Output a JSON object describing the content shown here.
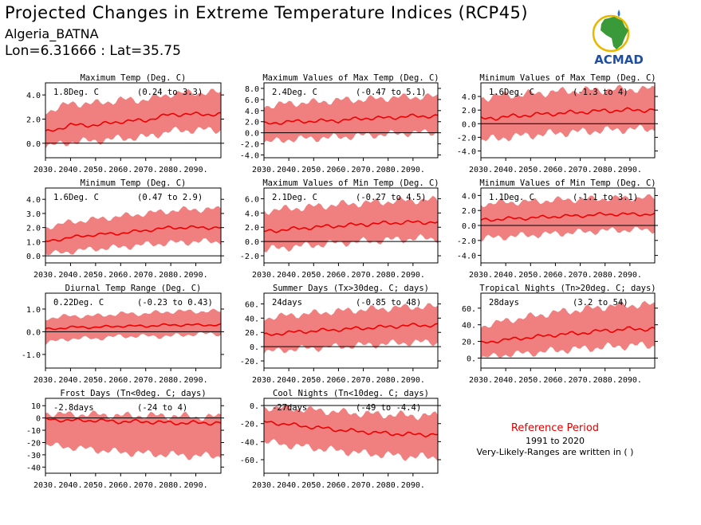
{
  "header": {
    "title": "Projected Changes in Extreme Temperature Indices (RCP45)",
    "region": "Algeria_BATNA",
    "coords": "Lon=6.31666 : Lat=35.75"
  },
  "logo": {
    "text": "ACMAD",
    "icon": "africa-map-logo-icon"
  },
  "reference": {
    "title": "Reference Period",
    "years": "1991 to 2020",
    "note": "Very-Likely-Ranges are written in ( )"
  },
  "colors": {
    "band": "#f08080",
    "line": "#ee0000",
    "reference": "#e00000",
    "logo_text": "#1f4fa0",
    "logo_map": "#3a9a3a"
  },
  "chart_data": [
    {
      "type": "area",
      "title": "Maximum Temp (Deg. C)",
      "mean_label": "1.8Deg. C",
      "range_label": "(0.24 to 3.3)",
      "x": [
        2030,
        2040,
        2050,
        2060,
        2070,
        2080,
        2090
      ],
      "xticklabels": [
        "2030.",
        "2040.",
        "2050.",
        "2060.",
        "2070.",
        "2080.",
        "2090."
      ],
      "xlim": [
        2030,
        2100
      ],
      "ylim": [
        -1.2,
        5.0
      ],
      "yticks": [
        0.0,
        2.0,
        4.0
      ],
      "yticklabels": [
        "0.0",
        "2.0",
        "4.0"
      ],
      "series": [
        {
          "mean": [
            0.9,
            1.5,
            1.5,
            1.8,
            1.9,
            2.4,
            2.4
          ],
          "low": [
            -0.3,
            0.1,
            0.2,
            0.4,
            0.5,
            1.0,
            1.1
          ],
          "high": [
            2.6,
            3.3,
            3.3,
            3.6,
            3.6,
            4.1,
            4.2
          ]
        }
      ]
    },
    {
      "type": "area",
      "title": "Maximum Values of Max Temp (Deg. C)",
      "mean_label": "2.4Deg. C",
      "range_label": "(-0.47 to 5.1)",
      "x": [
        2030,
        2040,
        2050,
        2060,
        2070,
        2080,
        2090
      ],
      "xticklabels": [
        "2030.",
        "2040.",
        "2050.",
        "2060.",
        "2070.",
        "2080.",
        "2090."
      ],
      "xlim": [
        2030,
        2100
      ],
      "ylim": [
        -4.5,
        9.0
      ],
      "yticks": [
        -4.0,
        -2.0,
        0.0,
        2.0,
        4.0,
        6.0,
        8.0
      ],
      "yticklabels": [
        "-4.0",
        "-2.0",
        "0.0",
        "2.0",
        "4.0",
        "6.0",
        "8.0"
      ],
      "series": [
        {
          "mean": [
            1.6,
            2.0,
            2.1,
            2.2,
            2.6,
            2.7,
            3.0
          ],
          "low": [
            -1.8,
            -1.2,
            -1.0,
            -0.8,
            -0.5,
            -0.3,
            0.0
          ],
          "high": [
            4.8,
            5.3,
            5.5,
            5.9,
            6.0,
            6.3,
            6.5
          ]
        }
      ]
    },
    {
      "type": "area",
      "title": "Minimum Values of Max Temp (Deg. C)",
      "mean_label": "1.6Deg. C",
      "range_label": "(-1.3 to 4)",
      "x": [
        2030,
        2040,
        2050,
        2060,
        2070,
        2080,
        2090
      ],
      "xticklabels": [
        "2030.",
        "2040.",
        "2050.",
        "2060.",
        "2070.",
        "2080.",
        "2090."
      ],
      "xlim": [
        2030,
        2100
      ],
      "ylim": [
        -5.0,
        6.0
      ],
      "yticks": [
        -4.0,
        -2.0,
        0.0,
        2.0,
        4.0
      ],
      "yticklabels": [
        "-4.0",
        "-2.0",
        "0.0",
        "2.0",
        "4.0"
      ],
      "series": [
        {
          "mean": [
            0.7,
            1.0,
            1.3,
            1.5,
            1.7,
            1.9,
            2.0
          ],
          "low": [
            -2.5,
            -2.0,
            -1.7,
            -1.4,
            -1.2,
            -1.0,
            -0.8
          ],
          "high": [
            3.8,
            4.2,
            4.4,
            4.7,
            4.9,
            5.0,
            5.1
          ]
        }
      ]
    },
    {
      "type": "area",
      "title": "Minimum Temp (Deg. C)",
      "mean_label": "1.6Deg. C",
      "range_label": "(0.47 to 2.9)",
      "x": [
        2030,
        2040,
        2050,
        2060,
        2070,
        2080,
        2090
      ],
      "xticklabels": [
        "2030.",
        "2040.",
        "2050.",
        "2060.",
        "2070.",
        "2080.",
        "2090."
      ],
      "xlim": [
        2030,
        2100
      ],
      "ylim": [
        -0.5,
        4.8
      ],
      "yticks": [
        0.0,
        1.0,
        2.0,
        3.0,
        4.0
      ],
      "yticklabels": [
        "0.0",
        "1.0",
        "2.0",
        "3.0",
        "4.0"
      ],
      "series": [
        {
          "mean": [
            1.0,
            1.3,
            1.5,
            1.6,
            1.8,
            2.0,
            2.0
          ],
          "low": [
            0.1,
            0.3,
            0.5,
            0.6,
            0.8,
            0.9,
            1.0
          ],
          "high": [
            2.0,
            2.4,
            2.6,
            2.8,
            3.0,
            3.2,
            3.3
          ]
        }
      ]
    },
    {
      "type": "area",
      "title": "Maximum Values of Min Temp (Deg. C)",
      "mean_label": "2.1Deg. C",
      "range_label": "(-0.27 to 4.5)",
      "x": [
        2030,
        2040,
        2050,
        2060,
        2070,
        2080,
        2090
      ],
      "xticklabels": [
        "2030.",
        "2040.",
        "2050.",
        "2060.",
        "2070.",
        "2080.",
        "2090."
      ],
      "xlim": [
        2030,
        2100
      ],
      "ylim": [
        -3.0,
        7.5
      ],
      "yticks": [
        -2.0,
        0.0,
        2.0,
        4.0,
        6.0
      ],
      "yticklabels": [
        "-2.0",
        "0.0",
        "2.0",
        "4.0",
        "6.0"
      ],
      "series": [
        {
          "mean": [
            1.4,
            1.7,
            2.0,
            2.2,
            2.4,
            2.6,
            2.7
          ],
          "low": [
            -1.2,
            -0.8,
            -0.5,
            -0.2,
            0.0,
            0.2,
            0.4
          ],
          "high": [
            4.3,
            4.6,
            4.9,
            5.2,
            5.4,
            5.6,
            5.8
          ]
        }
      ]
    },
    {
      "type": "area",
      "title": "Minimum Values of Min Temp (Deg. C)",
      "mean_label": "1.1Deg. C",
      "range_label": "(-1.1 to 3.1)",
      "x": [
        2030,
        2040,
        2050,
        2060,
        2070,
        2080,
        2090
      ],
      "xticklabels": [
        "2030.",
        "2040.",
        "2050.",
        "2060.",
        "2070.",
        "2080.",
        "2090."
      ],
      "xlim": [
        2030,
        2100
      ],
      "ylim": [
        -5.0,
        5.0
      ],
      "yticks": [
        -4.0,
        -2.0,
        0.0,
        2.0,
        4.0
      ],
      "yticklabels": [
        "-4.0",
        "-2.0",
        "0.0",
        "2.0",
        "4.0"
      ],
      "series": [
        {
          "mean": [
            0.7,
            0.9,
            1.0,
            1.2,
            1.3,
            1.5,
            1.5
          ],
          "low": [
            -1.8,
            -1.5,
            -1.3,
            -1.1,
            -0.9,
            -0.7,
            -0.6
          ],
          "high": [
            2.9,
            3.1,
            3.2,
            3.4,
            3.5,
            3.6,
            3.7
          ]
        }
      ]
    },
    {
      "type": "area",
      "title": "Diurnal Temp Range (Deg. C)",
      "mean_label": "0.22Deg. C",
      "range_label": "(-0.23 to 0.43)",
      "x": [
        2030,
        2040,
        2050,
        2060,
        2070,
        2080,
        2090
      ],
      "xticklabels": [
        "2030.",
        "2040.",
        "2050.",
        "2060.",
        "2070.",
        "2080.",
        "2090."
      ],
      "xlim": [
        2030,
        2100
      ],
      "ylim": [
        -1.6,
        1.7
      ],
      "yticks": [
        -1.0,
        0.0,
        1.0
      ],
      "yticklabels": [
        "-1.0",
        "0.0",
        "1.0"
      ],
      "series": [
        {
          "mean": [
            0.1,
            0.2,
            0.2,
            0.25,
            0.25,
            0.3,
            0.3
          ],
          "low": [
            -0.5,
            -0.3,
            -0.3,
            -0.2,
            -0.2,
            -0.2,
            -0.1
          ],
          "high": [
            0.6,
            0.7,
            0.7,
            0.8,
            0.8,
            0.9,
            0.9
          ]
        }
      ]
    },
    {
      "type": "area",
      "title": "Summer Days (Tx>30deg. C; days)",
      "mean_label": "24days",
      "range_label": "(-0.85 to 48)",
      "x": [
        2030,
        2040,
        2050,
        2060,
        2070,
        2080,
        2090
      ],
      "xticklabels": [
        "2030.",
        "2040.",
        "2050.",
        "2060.",
        "2070.",
        "2080.",
        "2090."
      ],
      "xlim": [
        2030,
        2100
      ],
      "ylim": [
        -30.0,
        75.0
      ],
      "yticks": [
        -20.0,
        0.0,
        20.0,
        40.0,
        60.0
      ],
      "yticklabels": [
        "-20.",
        "0.",
        "20.",
        "40.",
        "60."
      ],
      "series": [
        {
          "mean": [
            16,
            20,
            22,
            24,
            26,
            28,
            30
          ],
          "low": [
            -8,
            -4,
            -2,
            0,
            2,
            4,
            6
          ],
          "high": [
            40,
            44,
            47,
            50,
            52,
            54,
            56
          ]
        }
      ]
    },
    {
      "type": "area",
      "title": "Tropical Nights (Tn>20deg. C; days)",
      "mean_label": "28days",
      "range_label": "(3.2 to 54)",
      "x": [
        2030,
        2040,
        2050,
        2060,
        2070,
        2080,
        2090
      ],
      "xticklabels": [
        "2030.",
        "2040.",
        "2050.",
        "2060.",
        "2070.",
        "2080.",
        "2090."
      ],
      "xlim": [
        2030,
        2100
      ],
      "ylim": [
        -12.0,
        78.0
      ],
      "yticks": [
        0.0,
        20.0,
        40.0,
        60.0
      ],
      "yticklabels": [
        "0.",
        "20.",
        "40.",
        "60."
      ],
      "series": [
        {
          "mean": [
            18,
            22,
            25,
            28,
            30,
            33,
            35
          ],
          "low": [
            0,
            4,
            6,
            9,
            11,
            13,
            15
          ],
          "high": [
            38,
            45,
            50,
            55,
            58,
            62,
            64
          ]
        }
      ]
    },
    {
      "type": "area",
      "title": "Frost Days (Tn<0deg. C; days)",
      "mean_label": "-2.8days",
      "range_label": "(-24 to 4)",
      "x": [
        2030,
        2040,
        2050,
        2060,
        2070,
        2080,
        2090
      ],
      "xticklabels": [
        "2030.",
        "2040.",
        "2050.",
        "2060.",
        "2070.",
        "2080.",
        "2090."
      ],
      "xlim": [
        2030,
        2100
      ],
      "ylim": [
        -45.0,
        16.0
      ],
      "yticks": [
        -40.0,
        -30.0,
        -20.0,
        -10.0,
        0.0,
        10.0
      ],
      "yticklabels": [
        "-40",
        "-30",
        "-20",
        "-10",
        "0",
        "10"
      ],
      "series": [
        {
          "mean": [
            -1,
            -2,
            -2,
            -3,
            -3,
            -4,
            -4
          ],
          "low": [
            -22,
            -24,
            -26,
            -28,
            -29,
            -30,
            -31
          ],
          "high": [
            4,
            3,
            3,
            2,
            2,
            2,
            1
          ]
        }
      ]
    },
    {
      "type": "area",
      "title": "Cool Nights (Tn<10deg. C; days)",
      "mean_label": "-27days",
      "range_label": "(-49 to -4.4)",
      "x": [
        2030,
        2040,
        2050,
        2060,
        2070,
        2080,
        2090
      ],
      "xticklabels": [
        "2030.",
        "2040.",
        "2050.",
        "2060.",
        "2070.",
        "2080.",
        "2090."
      ],
      "xlim": [
        2030,
        2100
      ],
      "ylim": [
        -75.0,
        8.0
      ],
      "yticks": [
        -60.0,
        -40.0,
        -20.0,
        0.0
      ],
      "yticklabels": [
        "-60.",
        "-40.",
        "-20.",
        "0."
      ],
      "series": [
        {
          "mean": [
            -18,
            -21,
            -24,
            -27,
            -29,
            -31,
            -32
          ],
          "low": [
            -40,
            -44,
            -47,
            -50,
            -53,
            -55,
            -57
          ],
          "high": [
            -2,
            -3,
            -5,
            -7,
            -9,
            -10,
            -11
          ]
        }
      ]
    }
  ]
}
